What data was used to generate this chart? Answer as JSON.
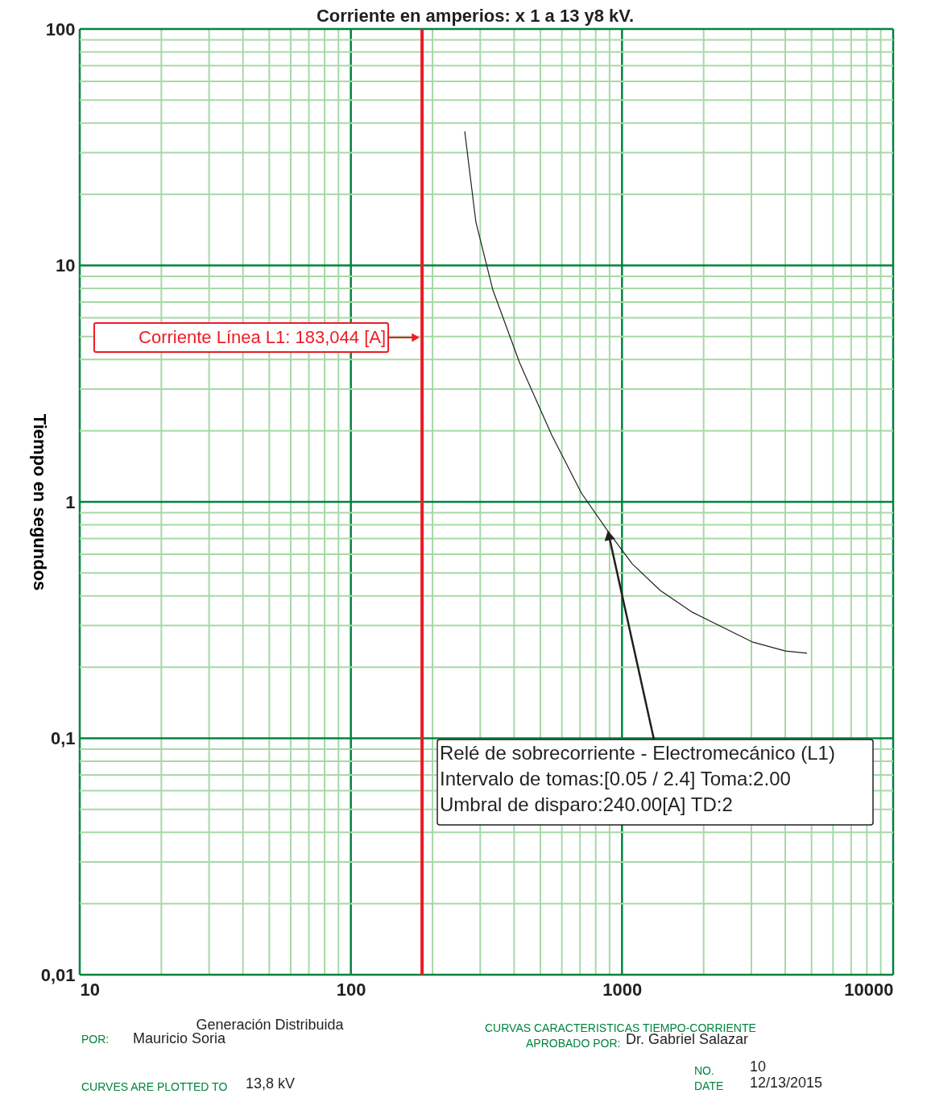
{
  "chart_data": {
    "type": "line",
    "title": "Corriente en amperios: x 1 a 13 y8 kV.",
    "ylabel": "Tiempo en segundos",
    "log": "xy",
    "grid": true,
    "marker": "none",
    "line_style": "solid",
    "xlim": [
      10,
      10000
    ],
    "ylim": [
      0.01,
      100
    ],
    "xticks": [
      10,
      {
        "value": 20,
        "label": null
      },
      {
        "value": 30,
        "label": null
      },
      {
        "value": 40,
        "label": null
      },
      {
        "value": 50,
        "label": null
      },
      {
        "value": 60,
        "label": null
      },
      {
        "value": 70,
        "label": null
      },
      {
        "value": 80,
        "label": null
      },
      {
        "value": 90,
        "label": null
      },
      100,
      {
        "value": 200,
        "label": null
      },
      {
        "value": 300,
        "label": null
      },
      {
        "value": 400,
        "label": null
      },
      {
        "value": 500,
        "label": null
      },
      {
        "value": 600,
        "label": null
      },
      {
        "value": 700,
        "label": null
      },
      {
        "value": 800,
        "label": null
      },
      {
        "value": 900,
        "label": null
      },
      1000,
      {
        "value": 2000,
        "label": null
      },
      {
        "value": 3000,
        "label": null
      },
      {
        "value": 4000,
        "label": null
      },
      {
        "value": 5000,
        "label": null
      },
      {
        "value": 6000,
        "label": null
      },
      {
        "value": 7000,
        "label": null
      },
      {
        "value": 8000,
        "label": null
      },
      {
        "value": 9000,
        "label": null
      },
      10000
    ],
    "yticks": [
      {
        "value": 0.01,
        "label": "0,01"
      },
      {
        "value": 0.02,
        "label": null
      },
      {
        "value": 0.03,
        "label": null
      },
      {
        "value": 0.04,
        "label": null
      },
      {
        "value": 0.05,
        "label": null
      },
      {
        "value": 0.06,
        "label": null
      },
      {
        "value": 0.07,
        "label": null
      },
      {
        "value": 0.08,
        "label": null
      },
      {
        "value": 0.09,
        "label": null
      },
      {
        "value": 0.1,
        "label": "0,1"
      },
      {
        "value": 0.2,
        "label": null
      },
      {
        "value": 0.3,
        "label": null
      },
      {
        "value": 0.4,
        "label": null
      },
      {
        "value": 0.5,
        "label": null
      },
      {
        "value": 0.6,
        "label": null
      },
      {
        "value": 0.7,
        "label": null
      },
      {
        "value": 0.8,
        "label": null
      },
      {
        "value": 0.9,
        "label": null
      },
      1,
      {
        "value": 2,
        "label": null
      },
      {
        "value": 3,
        "label": null
      },
      {
        "value": 4,
        "label": null
      },
      {
        "value": 5,
        "label": null
      },
      {
        "value": 6,
        "label": null
      },
      {
        "value": 7,
        "label": null
      },
      {
        "value": 8,
        "label": null
      },
      {
        "value": 9,
        "label": null
      },
      10,
      {
        "value": 20,
        "label": null
      },
      {
        "value": 30,
        "label": null
      },
      {
        "value": 40,
        "label": null
      },
      {
        "value": 50,
        "label": null
      },
      {
        "value": 60,
        "label": null
      },
      {
        "value": 70,
        "label": null
      },
      {
        "value": 80,
        "label": null
      },
      {
        "value": 90,
        "label": null
      },
      100
    ],
    "series": [
      {
        "color": "#231f20",
        "x": [
          263,
          289,
          334,
          419,
          550,
          708,
          888,
          1090,
          1384,
          1820,
          3040,
          4000,
          4810
        ],
        "values": [
          36.9,
          15.3,
          7.87,
          3.88,
          1.92,
          1.09,
          0.75,
          0.547,
          0.422,
          0.341,
          0.255,
          0.234,
          0.229
        ]
      }
    ],
    "ref_lines": [
      {
        "axis": "x",
        "value": 183.044,
        "label": "Corriente Línea L1: 183,044 [A]",
        "color": "#ee1c25"
      }
    ],
    "annotations": [
      {
        "text": "Relé de sobrecorriente - Electromecánico (L1)\nIntervalo de tomas:[0.05 / 2.4] Toma:2.00\nUmbral de disparo:240.00[A] TD:2",
        "x": 888,
        "y": 0.75
      },
      "Generación Distribuida",
      "POR:",
      "Mauricio Soria",
      "CURVAS CARACTERISTICAS TIEMPO-CORRIENTE",
      "APROBADO POR:",
      "Dr. Gabriel Salazar",
      "CURVES ARE PLOTTED TO",
      "13,8 kV",
      "NO.",
      "10",
      "DATE",
      "12/13/2015"
    ]
  }
}
